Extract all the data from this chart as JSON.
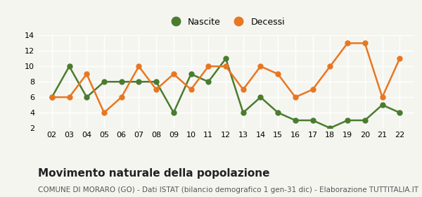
{
  "years": [
    2,
    3,
    4,
    5,
    6,
    7,
    8,
    9,
    10,
    11,
    12,
    13,
    14,
    15,
    16,
    17,
    18,
    19,
    20,
    21,
    22
  ],
  "nascite": [
    6,
    10,
    6,
    8,
    8,
    8,
    8,
    4,
    9,
    8,
    11,
    4,
    6,
    4,
    3,
    3,
    2,
    3,
    3,
    5,
    4
  ],
  "decessi": [
    6,
    6,
    9,
    4,
    6,
    10,
    7,
    9,
    7,
    10,
    10,
    7,
    10,
    9,
    6,
    7,
    10,
    13,
    13,
    6,
    11
  ],
  "nascite_color": "#4a7c2f",
  "decessi_color": "#e87722",
  "title": "Movimento naturale della popolazione",
  "subtitle": "COMUNE DI MORARO (GO) - Dati ISTAT (bilancio demografico 1 gen-31 dic) - Elaborazione TUTTITALIA.IT",
  "legend_nascite": "Nascite",
  "legend_decessi": "Decessi",
  "ylim": [
    2,
    14
  ],
  "yticks": [
    2,
    4,
    6,
    8,
    10,
    12,
    14
  ],
  "background_color": "#f5f5f0",
  "grid_color": "#ffffff",
  "title_fontsize": 11,
  "subtitle_fontsize": 7.5,
  "legend_fontsize": 9,
  "tick_fontsize": 8,
  "linewidth": 1.8,
  "markersize": 5
}
